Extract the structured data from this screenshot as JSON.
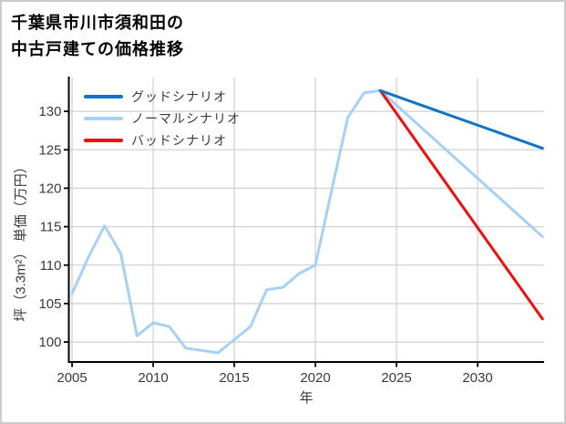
{
  "title": {
    "line1": "千葉県市川市須和田の",
    "line2": "中古戸建ての価格推移"
  },
  "colors": {
    "good": "#1274c5",
    "normal": "#a5d1f7",
    "bad": "#f10e0e",
    "grid": "#d2d2d2",
    "axis": "#000000",
    "tick_text": "#3a3a3a",
    "background": "#ffffff",
    "frame_border": "#cbcbcb"
  },
  "legend": {
    "items": [
      {
        "key": "good",
        "label": "グッドシナリオ"
      },
      {
        "key": "normal",
        "label": "ノーマルシナリオ"
      },
      {
        "key": "bad",
        "label": "バッドシナリオ"
      }
    ]
  },
  "chart_data": {
    "type": "line",
    "title": "千葉県市川市須和田の中古戸建ての価格推移",
    "xlabel": "年",
    "ylabel": "坪（3.3m²） 単価（万円）",
    "x_ticks": [
      2005,
      2010,
      2015,
      2020,
      2025,
      2030
    ],
    "y_ticks": [
      100,
      105,
      110,
      115,
      120,
      125,
      130
    ],
    "xlim": [
      2004.8,
      2034.1
    ],
    "ylim": [
      97.4,
      134.4
    ],
    "grid": true,
    "legend_position": "upper-left",
    "series": [
      {
        "name": "history",
        "color_key": "normal",
        "x": [
          2005,
          2006,
          2007,
          2008,
          2009,
          2010,
          2011,
          2012,
          2013,
          2014,
          2015,
          2016,
          2017,
          2018,
          2019,
          2020,
          2021,
          2022,
          2023,
          2024
        ],
        "values": [
          106.3,
          111.0,
          115.1,
          111.5,
          100.8,
          102.5,
          102.0,
          99.2,
          98.9,
          98.6,
          100.3,
          102.0,
          106.8,
          107.1,
          108.9,
          110.0,
          119.7,
          129.2,
          132.4,
          132.7
        ]
      },
      {
        "name": "ノーマルシナリオ",
        "color_key": "normal",
        "x": [
          2024,
          2034
        ],
        "values": [
          132.7,
          113.7
        ]
      },
      {
        "name": "バッドシナリオ",
        "color_key": "bad",
        "x": [
          2024,
          2034
        ],
        "values": [
          132.7,
          103.0
        ]
      },
      {
        "name": "グッドシナリオ",
        "color_key": "good",
        "x": [
          2024,
          2034
        ],
        "values": [
          132.7,
          125.2
        ]
      }
    ]
  }
}
